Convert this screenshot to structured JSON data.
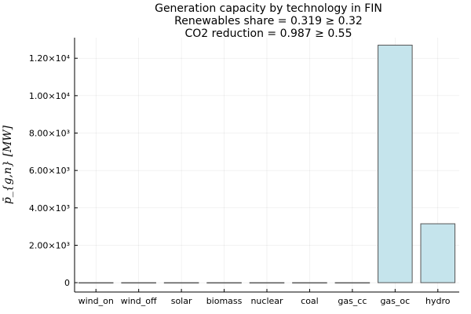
{
  "chart_data": {
    "type": "bar",
    "title_lines": [
      "Generation capacity by technology in FIN",
      "Renewables share = 0.319 ≥ 0.32",
      "CO2 reduction = 0.987 ≥ 0.55"
    ],
    "categories": [
      "wind_on",
      "wind_off",
      "solar",
      "biomass",
      "nuclear",
      "coal",
      "gas_cc",
      "gas_oc",
      "hydro"
    ],
    "values": [
      0,
      0,
      0,
      0,
      0,
      0,
      0,
      12700,
      3150
    ],
    "ylabel": "p̄_{g,n} [MW]",
    "ylim": [
      -500,
      13100
    ],
    "yticks": [
      0,
      2000,
      4000,
      6000,
      8000,
      10000,
      12000
    ],
    "ytick_labels": [
      "0",
      "2.00×10³",
      "4.00×10³",
      "6.00×10³",
      "8.00×10³",
      "1.00×10⁴",
      "1.20×10⁴"
    ],
    "grid": true,
    "legend": "none",
    "bar_color": "#c5e4ec"
  }
}
